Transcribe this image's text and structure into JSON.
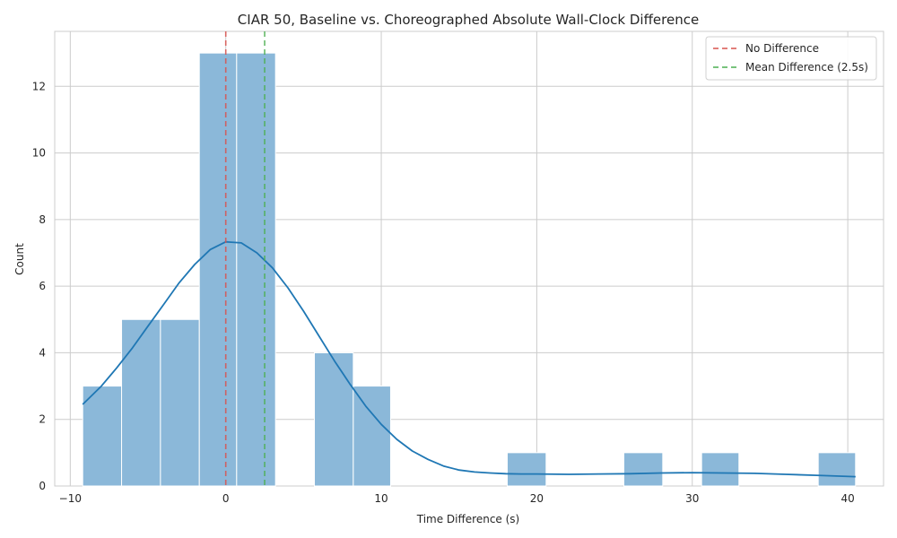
{
  "chart_data": {
    "type": "histogram",
    "title": "CIAR 50, Baseline vs. Choreographed Absolute Wall-Clock Difference",
    "xlabel": "Time Difference (s)",
    "ylabel": "Count",
    "xlim": [
      -11,
      42.3
    ],
    "ylim": [
      0,
      13.65
    ],
    "x_ticks": [
      -10,
      0,
      10,
      20,
      30,
      40
    ],
    "y_ticks": [
      0,
      2,
      4,
      6,
      8,
      10,
      12
    ],
    "grid": true,
    "bars": [
      {
        "x0": -9.2,
        "x1": -6.7,
        "count": 3
      },
      {
        "x0": -6.7,
        "x1": -4.2,
        "count": 5
      },
      {
        "x0": -4.2,
        "x1": -1.7,
        "count": 5
      },
      {
        "x0": -1.7,
        "x1": 0.7,
        "count": 13
      },
      {
        "x0": 0.7,
        "x1": 3.2,
        "count": 13
      },
      {
        "x0": 3.2,
        "x1": 5.7,
        "count": 0
      },
      {
        "x0": 5.7,
        "x1": 8.2,
        "count": 4
      },
      {
        "x0": 8.2,
        "x1": 10.6,
        "count": 3
      },
      {
        "x0": 18.1,
        "x1": 20.6,
        "count": 1
      },
      {
        "x0": 25.6,
        "x1": 28.1,
        "count": 1
      },
      {
        "x0": 30.6,
        "x1": 33.0,
        "count": 1
      },
      {
        "x0": 38.1,
        "x1": 40.5,
        "count": 1
      }
    ],
    "bar_color": "#8bb8d9",
    "kde": {
      "color": "#1f77b4",
      "x": [
        -9.2,
        -8,
        -7,
        -6,
        -5,
        -4,
        -3,
        -2,
        -1,
        0,
        1,
        2,
        3,
        4,
        5,
        6,
        7,
        8,
        9,
        10,
        11,
        12,
        13,
        14,
        15,
        16,
        17,
        18,
        19,
        20,
        22,
        24,
        26,
        28,
        30,
        32,
        34,
        36,
        38,
        40.5
      ],
      "y": [
        2.45,
        3.0,
        3.55,
        4.15,
        4.8,
        5.45,
        6.1,
        6.65,
        7.1,
        7.33,
        7.3,
        7.0,
        6.55,
        5.95,
        5.25,
        4.5,
        3.75,
        3.05,
        2.4,
        1.85,
        1.4,
        1.05,
        0.8,
        0.6,
        0.48,
        0.42,
        0.39,
        0.37,
        0.36,
        0.36,
        0.35,
        0.36,
        0.37,
        0.39,
        0.4,
        0.39,
        0.38,
        0.35,
        0.32,
        0.28
      ]
    },
    "reference_lines": [
      {
        "name": "No Difference",
        "x": 0,
        "color": "#d9534f",
        "style": "dashed"
      },
      {
        "name": "Mean Difference (2.5s)",
        "x": 2.5,
        "color": "#4caf50",
        "style": "dashed"
      }
    ],
    "legend_position": "top-right"
  }
}
